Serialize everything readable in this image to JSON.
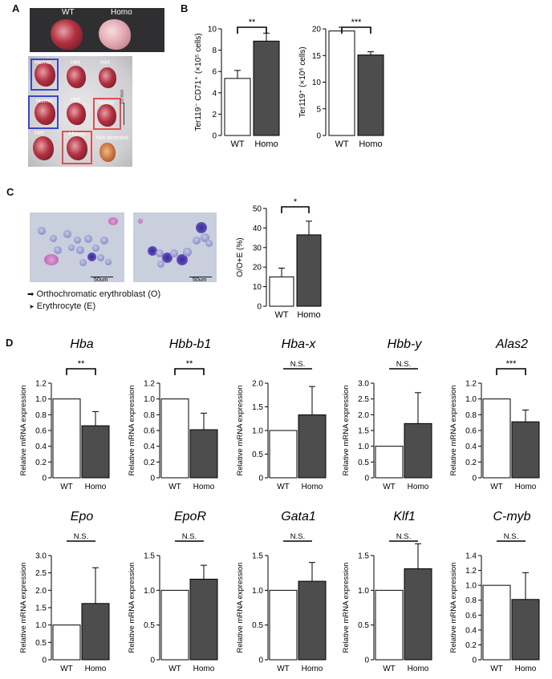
{
  "panels": {
    "A": "A",
    "B": "B",
    "C": "C",
    "D": "D"
  },
  "panelA": {
    "top_labels": [
      "WT",
      "Homo"
    ],
    "dish_labels": [
      "Homo",
      "Het",
      "Het",
      "Homo",
      "Het",
      "Homo",
      "Het",
      "Homo",
      "Not detected"
    ],
    "scale": "10 mm"
  },
  "panelC": {
    "scale1": "50um",
    "scale2": "50um",
    "legend_o": "Orthochromatic erythroblast (O)",
    "legend_e": "Erythrocyte (E)"
  },
  "chart_data": [
    {
      "id": "B1",
      "type": "bar",
      "categories": [
        "WT",
        "Homo"
      ],
      "values": [
        5.35,
        8.85
      ],
      "errors": [
        0.75,
        0.75
      ],
      "ylabel": "Ter119⁻ CD71⁺ (×10⁵ cells)",
      "ylim": [
        0,
        10
      ],
      "yticks": [
        "0",
        "2",
        "4",
        "6",
        "8",
        "10"
      ],
      "significance": "**",
      "colors": [
        "#ffffff",
        "#4d4d4d"
      ]
    },
    {
      "id": "B2",
      "type": "bar",
      "categories": [
        "WT",
        "Homo"
      ],
      "values": [
        19.6,
        15.1
      ],
      "errors": [
        0.7,
        0.6
      ],
      "ylabel": "Ter119⁺ (×10⁶ cells)",
      "ylim": [
        0,
        20
      ],
      "yticks": [
        "0",
        "5",
        "10",
        "15",
        "20"
      ],
      "significance": "***",
      "colors": [
        "#ffffff",
        "#4d4d4d"
      ]
    },
    {
      "id": "C",
      "type": "bar",
      "categories": [
        "WT",
        "Homo"
      ],
      "values": [
        15,
        36.5
      ],
      "errors": [
        4.5,
        7
      ],
      "ylabel": "O/O+E (%)",
      "ylim": [
        0,
        50
      ],
      "yticks": [
        "0",
        "10",
        "20",
        "30",
        "40",
        "50"
      ],
      "significance": "*",
      "colors": [
        "#ffffff",
        "#4d4d4d"
      ]
    },
    {
      "id": "D1",
      "type": "bar",
      "title": "Hba",
      "categories": [
        "WT",
        "Homo"
      ],
      "values": [
        1.0,
        0.66
      ],
      "errors": [
        0,
        0.18
      ],
      "ylabel": "Relative mRNA expression",
      "ylim": [
        0,
        1.2
      ],
      "yticks": [
        "0",
        "0.2",
        "0.4",
        "0.6",
        "0.8",
        "1.0",
        "1.2"
      ],
      "significance": "**"
    },
    {
      "id": "D2",
      "type": "bar",
      "title": "Hbb-b1",
      "categories": [
        "WT",
        "Homo"
      ],
      "values": [
        1.0,
        0.61
      ],
      "errors": [
        0,
        0.21
      ],
      "ylabel": "Relative mRNA expression",
      "ylim": [
        0,
        1.2
      ],
      "yticks": [
        "0",
        "0.2",
        "0.4",
        "0.6",
        "0.8",
        "1.0",
        "1.2"
      ],
      "significance": "**"
    },
    {
      "id": "D3",
      "type": "bar",
      "title": "Hba-x",
      "categories": [
        "WT",
        "Homo"
      ],
      "values": [
        1.0,
        1.33
      ],
      "errors": [
        0,
        0.6
      ],
      "ylabel": "Relative mRNA expression",
      "ylim": [
        0,
        2.0
      ],
      "yticks": [
        "0",
        "0.5",
        "1.0",
        "1.5",
        "2.0"
      ],
      "significance": "N.S."
    },
    {
      "id": "D4",
      "type": "bar",
      "title": "Hbb-y",
      "categories": [
        "WT",
        "Homo"
      ],
      "values": [
        1.0,
        1.72
      ],
      "errors": [
        0,
        0.98
      ],
      "ylabel": "Relative mRNA expression",
      "ylim": [
        0,
        3.0
      ],
      "yticks": [
        "0",
        "0.5",
        "1.0",
        "1.5",
        "2.0",
        "2.5",
        "3.0"
      ],
      "significance": "N.S."
    },
    {
      "id": "D5",
      "type": "bar",
      "title": "Alas2",
      "categories": [
        "WT",
        "Homo"
      ],
      "values": [
        1.0,
        0.71
      ],
      "errors": [
        0,
        0.15
      ],
      "ylabel": "Relative mRNA expression",
      "ylim": [
        0,
        1.2
      ],
      "yticks": [
        "0",
        "0.2",
        "0.4",
        "0.6",
        "0.8",
        "1.0",
        "1.2"
      ],
      "significance": "***"
    },
    {
      "id": "D6",
      "type": "bar",
      "title": "Epo",
      "categories": [
        "WT",
        "Homo"
      ],
      "values": [
        1.0,
        1.62
      ],
      "errors": [
        0,
        1.03
      ],
      "ylabel": "Relative mRNA expression",
      "ylim": [
        0,
        3.0
      ],
      "yticks": [
        "0",
        "0.5",
        "1.0",
        "1.5",
        "2.0",
        "2.5",
        "3.0"
      ],
      "significance": "N.S."
    },
    {
      "id": "D7",
      "type": "bar",
      "title": "EpoR",
      "categories": [
        "WT",
        "Homo"
      ],
      "values": [
        1.0,
        1.16
      ],
      "errors": [
        0,
        0.2
      ],
      "ylabel": "Relative mRNA expression",
      "ylim": [
        0,
        1.5
      ],
      "yticks": [
        "0",
        "0.5",
        "1.0",
        "1.5"
      ],
      "significance": "N.S."
    },
    {
      "id": "D8",
      "type": "bar",
      "title": "Gata1",
      "categories": [
        "WT",
        "Homo"
      ],
      "values": [
        1.0,
        1.13
      ],
      "errors": [
        0,
        0.27
      ],
      "ylabel": "Relative mRNA expression",
      "ylim": [
        0,
        1.5
      ],
      "yticks": [
        "0",
        "0.5",
        "1.0",
        "1.5"
      ],
      "significance": "N.S."
    },
    {
      "id": "D9",
      "type": "bar",
      "title": "Klf1",
      "categories": [
        "WT",
        "Homo"
      ],
      "values": [
        1.0,
        1.31
      ],
      "errors": [
        0,
        0.36
      ],
      "ylabel": "Relative mRNA expression",
      "ylim": [
        0,
        1.5
      ],
      "yticks": [
        "0",
        "0.5",
        "1.0",
        "1.5"
      ],
      "significance": "N.S."
    },
    {
      "id": "D10",
      "type": "bar",
      "title": "C-myb",
      "categories": [
        "WT",
        "Homo"
      ],
      "values": [
        1.0,
        0.81
      ],
      "errors": [
        0,
        0.36
      ],
      "ylabel": "Relative mRNA expression",
      "ylim": [
        0,
        1.4
      ],
      "yticks": [
        "0",
        "0.2",
        "0.4",
        "0.6",
        "0.8",
        "1.0",
        "1.2",
        "1.4"
      ],
      "significance": "N.S."
    }
  ]
}
